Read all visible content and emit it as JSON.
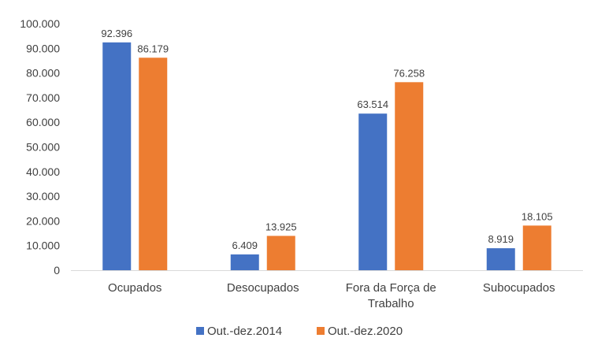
{
  "chart_data": {
    "type": "bar",
    "categories": [
      "Ocupados",
      "Desocupados",
      "Fora da Força de Trabalho",
      "Subocupados"
    ],
    "category_lines": [
      [
        "Ocupados"
      ],
      [
        "Desocupados"
      ],
      [
        "Fora da Força de",
        "Trabalho"
      ],
      [
        "Subocupados"
      ]
    ],
    "series": [
      {
        "name": "Out.-dez.2014",
        "color": "#4472C4",
        "values": [
          92396,
          6409,
          63514,
          8919
        ],
        "labels": [
          "92.396",
          "6.409",
          "63.514",
          "8.919"
        ]
      },
      {
        "name": "Out.-dez.2020",
        "color": "#ED7D31",
        "values": [
          86179,
          13925,
          76258,
          18105
        ],
        "labels": [
          "86.179",
          "13.925",
          "76.258",
          "18.105"
        ]
      }
    ],
    "ylim": [
      0,
      100000
    ],
    "yticks": [
      0,
      10000,
      20000,
      30000,
      40000,
      50000,
      60000,
      70000,
      80000,
      90000,
      100000
    ],
    "ytick_labels": [
      "0",
      "10.000",
      "20.000",
      "30.000",
      "40.000",
      "50.000",
      "60.000",
      "70.000",
      "80.000",
      "90.000",
      "100.000"
    ],
    "grid": false,
    "legend_position": "bottom",
    "axis_color": "#D9D9D9",
    "text_color": "#404040"
  }
}
